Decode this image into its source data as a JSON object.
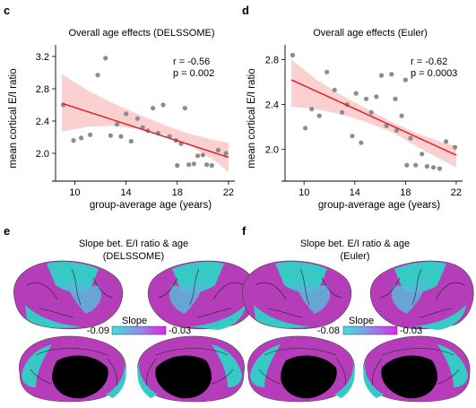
{
  "figure": {
    "panel_c": {
      "letter": "c",
      "title": "Overall age effects (DELSSOME)",
      "stats": {
        "r": "r = -0.56",
        "p": "p = 0.002"
      }
    },
    "panel_d": {
      "letter": "d",
      "title": "Overall age effects (Euler)",
      "stats": {
        "r": "r = -0.62",
        "p": "p = 0.0003"
      }
    },
    "panel_e": {
      "letter": "e",
      "title_line1": "Slope bet. E/I ratio & age",
      "title_line2": "(DELSSOME)",
      "colorbar_label": "Slope",
      "colorbar_min": "-0.09",
      "colorbar_max": "-0.03"
    },
    "panel_f": {
      "letter": "f",
      "title_line1": "Slope bet. E/I ratio & age",
      "title_line2": "(Euler)",
      "colorbar_label": "Slope",
      "colorbar_min": "-0.08",
      "colorbar_max": "-0.03"
    },
    "colors": {
      "points": "#8c8c8c",
      "fit_line": "#e41a1c",
      "ci_band": "#f9c8c8",
      "colormap_low": "#3fe2e0",
      "colormap_high": "#e024e8",
      "brain_cyan": "#36c9c6",
      "brain_magenta": "#b63db9"
    }
  },
  "chart_data": [
    {
      "panel": "c",
      "type": "scatter",
      "title": "Overall age effects (DELSSOME)",
      "xlabel": "group-average age (years)",
      "ylabel": "mean cortical E/I ratio",
      "xlim": [
        8.5,
        22.5
      ],
      "ylim": [
        1.7,
        3.3
      ],
      "xticks": [
        10,
        14,
        18,
        22
      ],
      "yticks": [
        2.0,
        2.4,
        2.8,
        3.2
      ],
      "ytick_labels": [
        "2.0",
        "2.4",
        "2.8",
        "3.2"
      ],
      "grid": false,
      "fit": {
        "x": [
          9,
          22
        ],
        "y": [
          2.62,
          1.95
        ]
      },
      "ci": {
        "x": [
          9,
          11,
          13,
          15,
          17,
          19,
          21,
          22
        ],
        "upper": [
          2.98,
          2.78,
          2.62,
          2.48,
          2.35,
          2.24,
          2.16,
          2.13
        ],
        "lower": [
          2.27,
          2.33,
          2.34,
          2.3,
          2.23,
          2.1,
          1.9,
          1.77
        ]
      },
      "points": [
        [
          9.1,
          2.6
        ],
        [
          9.9,
          2.16
        ],
        [
          10.5,
          2.19
        ],
        [
          11.2,
          2.23
        ],
        [
          11.8,
          2.97
        ],
        [
          12.4,
          3.18
        ],
        [
          12.8,
          2.22
        ],
        [
          13.3,
          2.36
        ],
        [
          13.6,
          2.21
        ],
        [
          14.0,
          2.49
        ],
        [
          14.4,
          2.15
        ],
        [
          14.9,
          2.43
        ],
        [
          15.3,
          2.32
        ],
        [
          15.7,
          2.28
        ],
        [
          16.1,
          2.56
        ],
        [
          16.5,
          2.25
        ],
        [
          16.9,
          2.6
        ],
        [
          17.4,
          2.21
        ],
        [
          17.9,
          2.16
        ],
        [
          18.3,
          2.12
        ],
        [
          18.6,
          2.56
        ],
        [
          18.9,
          1.86
        ],
        [
          19.3,
          1.87
        ],
        [
          19.6,
          1.97
        ],
        [
          20.0,
          1.98
        ],
        [
          20.3,
          1.86
        ],
        [
          20.7,
          1.85
        ],
        [
          21.2,
          2.04
        ],
        [
          21.8,
          2.0
        ],
        [
          18.0,
          1.85
        ]
      ]
    },
    {
      "panel": "d",
      "type": "scatter",
      "title": "Overall age effects (Euler)",
      "xlabel": "group-average age (years)",
      "ylabel": "mean cortical E/I ratio",
      "xlim": [
        8.5,
        22.5
      ],
      "ylim": [
        1.75,
        2.9
      ],
      "xticks": [
        10,
        14,
        18,
        22
      ],
      "yticks": [
        2.0,
        2.4,
        2.8
      ],
      "ytick_labels": [
        "2.0",
        "2.4",
        "2.8"
      ],
      "grid": false,
      "fit": {
        "x": [
          9,
          22
        ],
        "y": [
          2.62,
          1.95
        ]
      },
      "ci": {
        "x": [
          9,
          11,
          13,
          15,
          17,
          19,
          21,
          22
        ],
        "upper": [
          2.8,
          2.62,
          2.48,
          2.36,
          2.24,
          2.14,
          2.06,
          2.03
        ],
        "lower": [
          2.38,
          2.36,
          2.31,
          2.24,
          2.15,
          2.02,
          1.9,
          1.84
        ]
      },
      "points": [
        [
          9.1,
          2.84
        ],
        [
          10.1,
          2.19
        ],
        [
          10.6,
          2.36
        ],
        [
          11.2,
          2.3
        ],
        [
          11.8,
          2.69
        ],
        [
          12.4,
          2.53
        ],
        [
          13.0,
          2.33
        ],
        [
          13.4,
          2.4
        ],
        [
          13.8,
          2.12
        ],
        [
          14.1,
          2.5
        ],
        [
          14.5,
          2.06
        ],
        [
          14.9,
          2.45
        ],
        [
          15.3,
          2.33
        ],
        [
          15.7,
          2.47
        ],
        [
          16.1,
          2.66
        ],
        [
          16.5,
          2.21
        ],
        [
          16.9,
          2.67
        ],
        [
          17.3,
          2.17
        ],
        [
          17.7,
          2.3
        ],
        [
          18.1,
          1.86
        ],
        [
          18.4,
          2.1
        ],
        [
          18.8,
          1.86
        ],
        [
          19.3,
          1.96
        ],
        [
          19.7,
          1.85
        ],
        [
          20.2,
          1.84
        ],
        [
          20.7,
          1.83
        ],
        [
          21.2,
          2.07
        ],
        [
          21.9,
          2.02
        ],
        [
          18.0,
          2.62
        ],
        [
          17.2,
          2.45
        ]
      ]
    }
  ]
}
